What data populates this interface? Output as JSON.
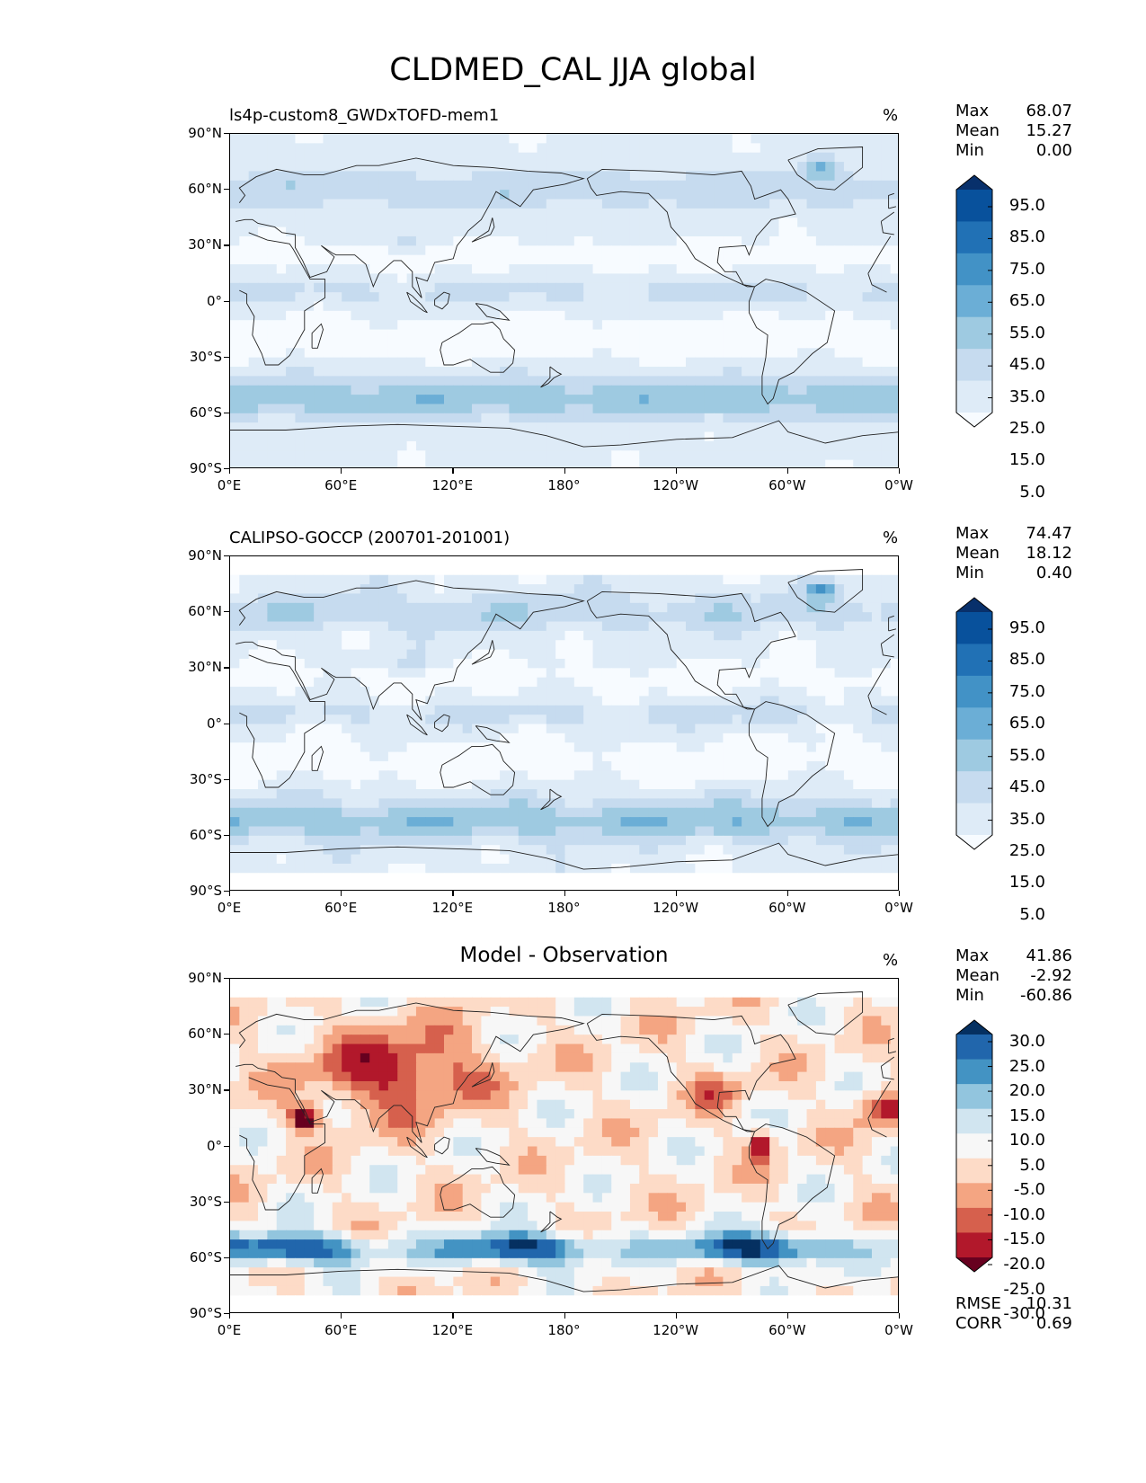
{
  "figure": {
    "title": "CLDMED_CAL JJA global"
  },
  "axes": {
    "yticks": [
      "90°N",
      "60°N",
      "30°N",
      "0°",
      "30°S",
      "60°S",
      "90°S"
    ],
    "xticks": [
      "0°E",
      "60°E",
      "120°E",
      "180°",
      "120°W",
      "60°W",
      "0°W"
    ]
  },
  "panels": [
    {
      "title": "ls4p-custom8_GWDxTOFD-mem1",
      "unit": "%",
      "stats": [
        {
          "label": "Max",
          "value": "68.07"
        },
        {
          "label": "Mean",
          "value": "15.27"
        },
        {
          "label": "Min",
          "value": "0.00"
        }
      ],
      "colorbar": {
        "labels": [
          "95.0",
          "85.0",
          "75.0",
          "65.0",
          "55.0",
          "45.0",
          "35.0",
          "25.0",
          "15.0",
          "5.0"
        ],
        "colors": [
          "#08306b",
          "#08519c",
          "#2171b5",
          "#4292c6",
          "#6baed6",
          "#9ecae1",
          "#c6dbef",
          "#deebf7",
          "#f7fbff"
        ]
      }
    },
    {
      "title": "CALIPSO-GOCCP (200701-201001)",
      "unit": "%",
      "stats": [
        {
          "label": "Max",
          "value": "74.47"
        },
        {
          "label": "Mean",
          "value": "18.12"
        },
        {
          "label": "Min",
          "value": "0.40"
        }
      ],
      "colorbar": {
        "labels": [
          "95.0",
          "85.0",
          "75.0",
          "65.0",
          "55.0",
          "45.0",
          "35.0",
          "25.0",
          "15.0",
          "5.0"
        ],
        "colors": [
          "#08306b",
          "#08519c",
          "#2171b5",
          "#4292c6",
          "#6baed6",
          "#9ecae1",
          "#c6dbef",
          "#deebf7",
          "#f7fbff"
        ]
      }
    },
    {
      "title": "Model - Observation",
      "unit": "%",
      "stats": [
        {
          "label": "Max",
          "value": "41.86"
        },
        {
          "label": "Mean",
          "value": "-2.92"
        },
        {
          "label": "Min",
          "value": "-60.86"
        }
      ],
      "colorbar": {
        "labels": [
          "30.0",
          "25.0",
          "20.0",
          "15.0",
          "10.0",
          "5.0",
          "-5.0",
          "-10.0",
          "-15.0",
          "-20.0",
          "-25.0",
          "-30.0"
        ],
        "colors": [
          "#053061",
          "#2166ac",
          "#4393c3",
          "#92c5de",
          "#d1e5f0",
          "#f7f7f7",
          "#fddbc7",
          "#f4a582",
          "#d6604d",
          "#b2182b",
          "#67001f"
        ]
      },
      "metrics": [
        {
          "label": "RMSE",
          "value": "10.31"
        },
        {
          "label": "CORR",
          "value": "0.69"
        }
      ]
    }
  ]
}
